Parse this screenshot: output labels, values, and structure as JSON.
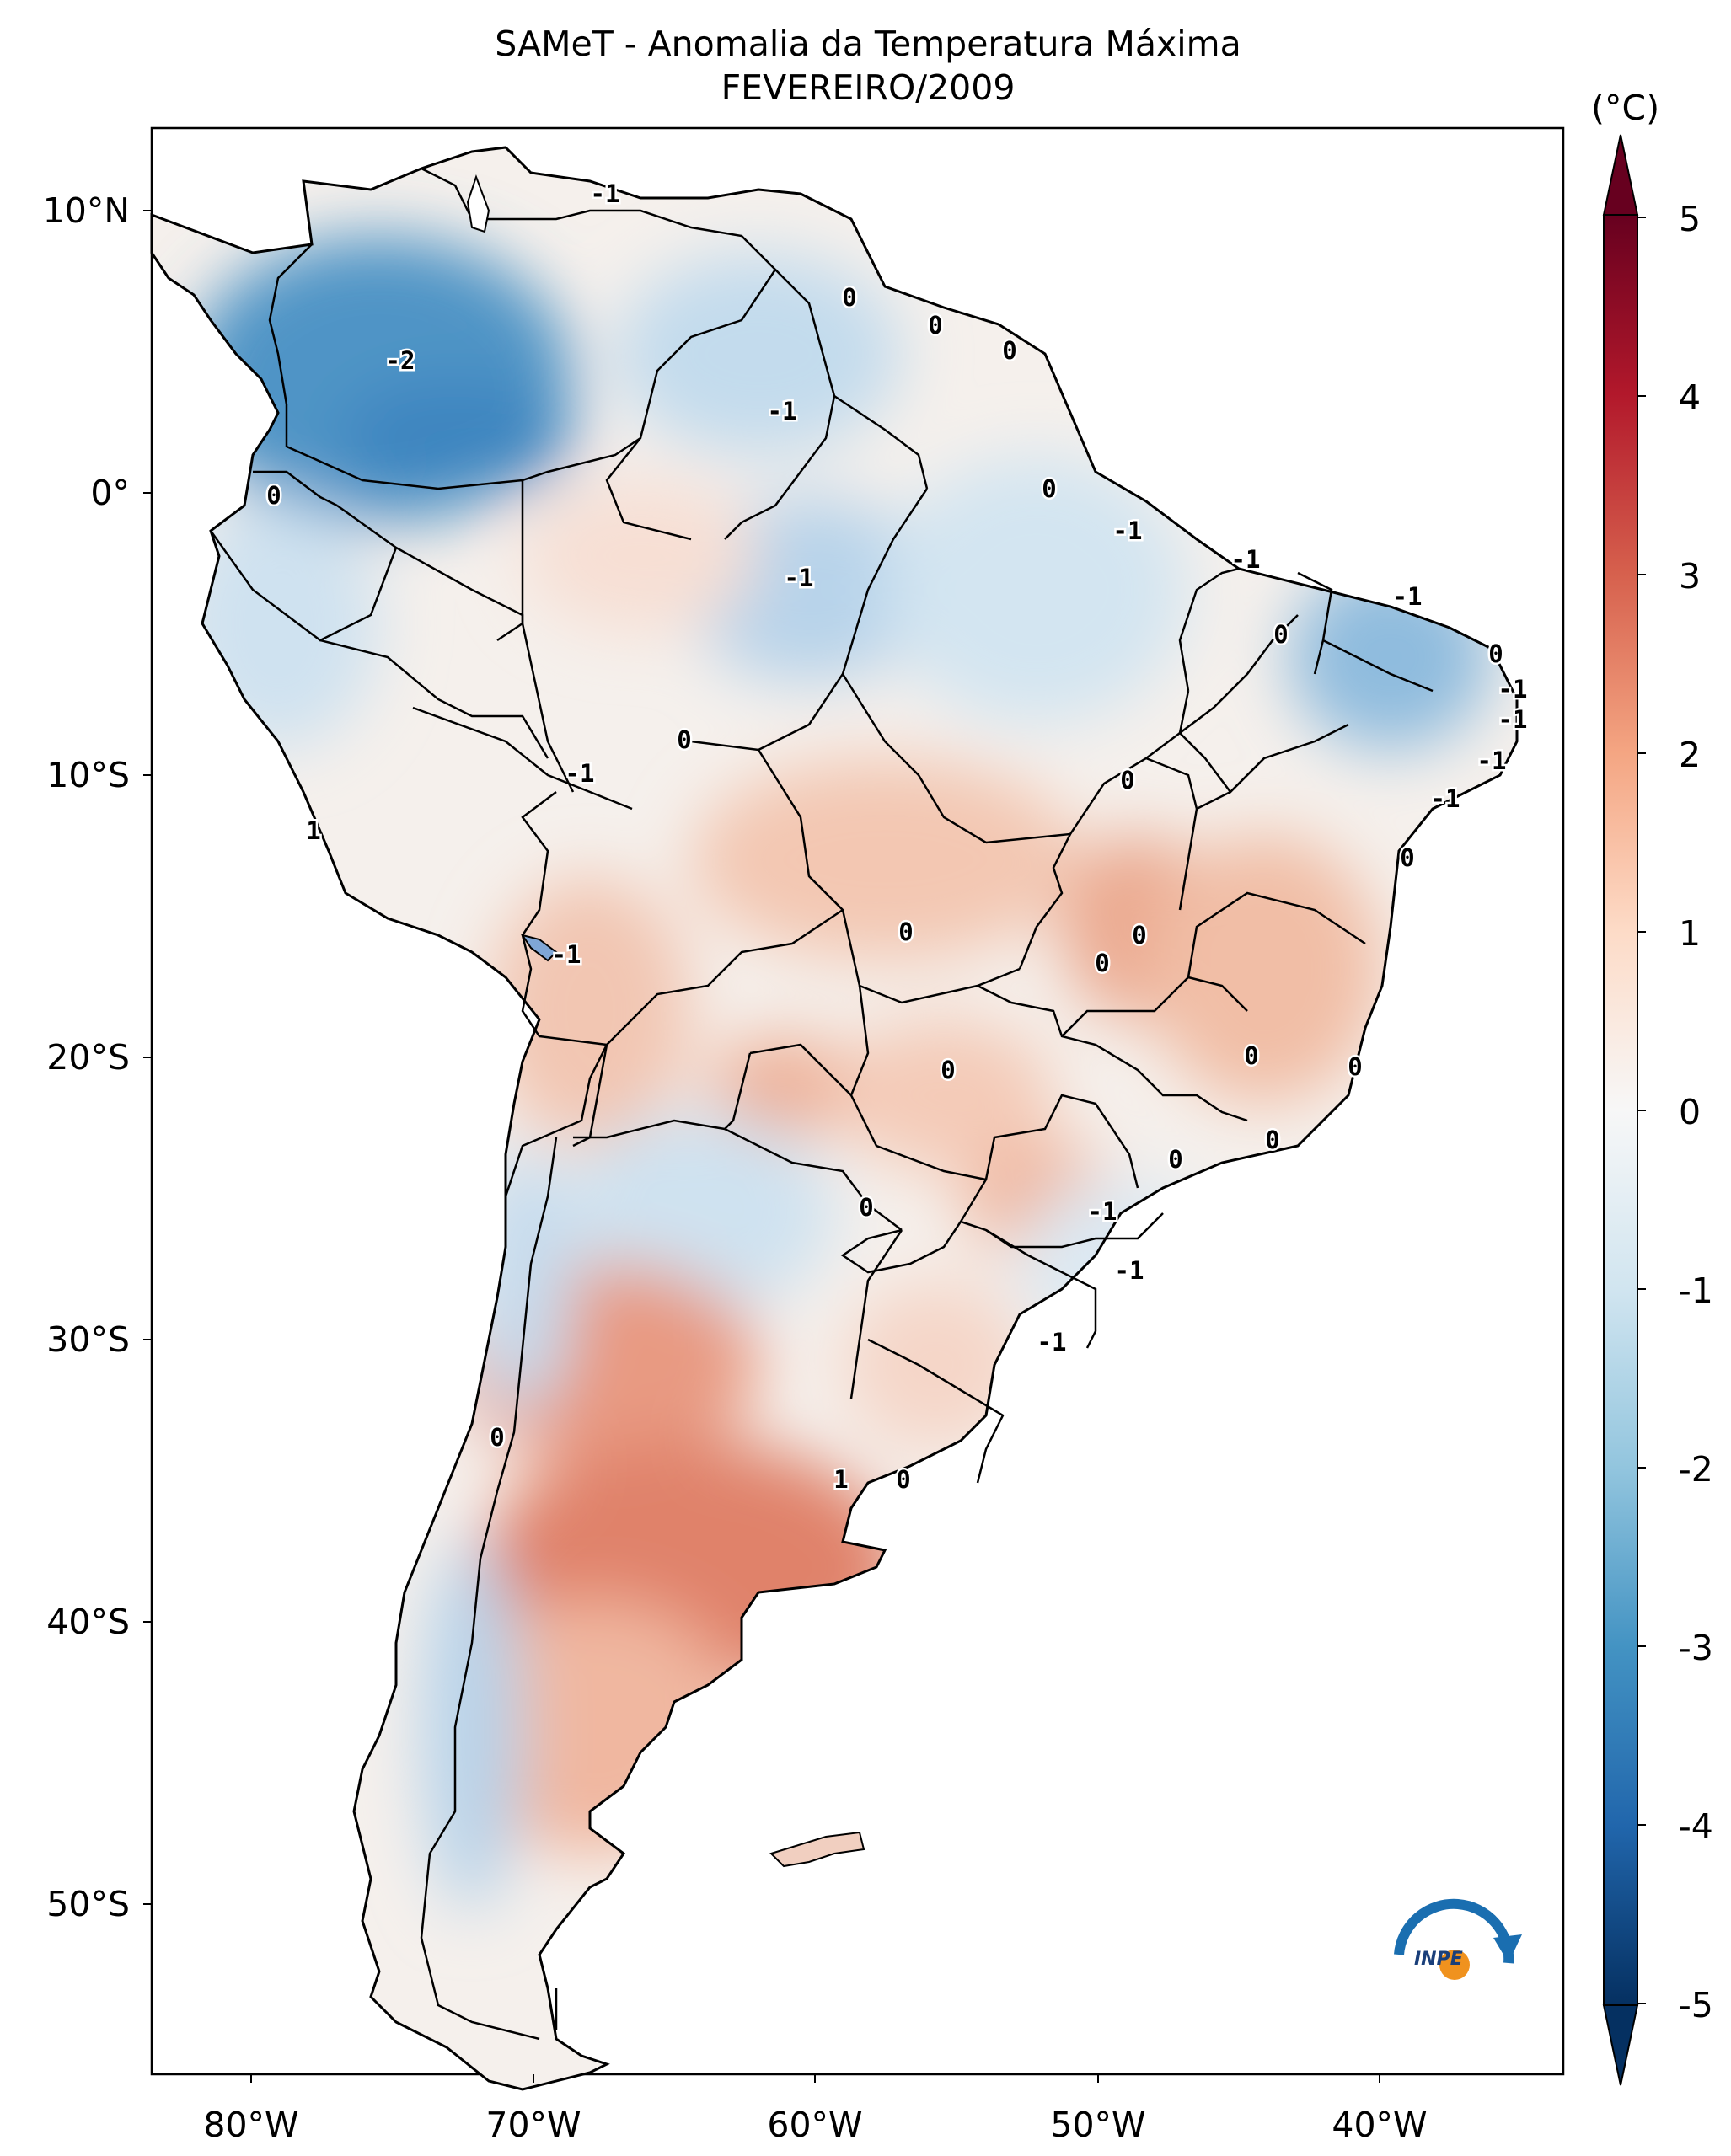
{
  "title": {
    "line1": "SAMeT - Anomalia da Temperatura Máxima",
    "line2": "FEVEREIRO/2009"
  },
  "axes": {
    "lat_ticks": [
      "10°N",
      "0°",
      "10°S",
      "20°S",
      "30°S",
      "40°S",
      "50°S"
    ],
    "lon_ticks": [
      "80°W",
      "70°W",
      "60°W",
      "50°W",
      "40°W"
    ],
    "lon_range": [
      -83,
      -33
    ],
    "lat_range": [
      -56,
      13
    ]
  },
  "colorbar": {
    "unit": "(°C)",
    "ticks": [
      "5",
      "4",
      "3",
      "2",
      "1",
      "0",
      "-1",
      "-2",
      "-3",
      "-4",
      "-5"
    ],
    "range": [
      -5,
      5
    ],
    "colors": [
      "#053061",
      "#2166ac",
      "#4393c3",
      "#92c5de",
      "#d1e5f0",
      "#f7f7f7",
      "#fddbc7",
      "#f4a582",
      "#d6604d",
      "#b2182b",
      "#67001f"
    ]
  },
  "contour_labels": [
    "-1",
    "-2",
    "0",
    "-1",
    "-1",
    "0",
    "0",
    "0",
    "0",
    "-1",
    "-1",
    "-1",
    "0",
    "-1",
    "0",
    "-1",
    "-1",
    "-1",
    "0",
    "-1",
    "1",
    "0",
    "-1",
    "0",
    "0",
    "0",
    "0",
    "0",
    "0",
    "0",
    "0",
    "0",
    "0",
    "-1",
    "-1",
    "0",
    "1",
    "0",
    "-1",
    "0"
  ],
  "logo": {
    "text": "INPE"
  }
}
